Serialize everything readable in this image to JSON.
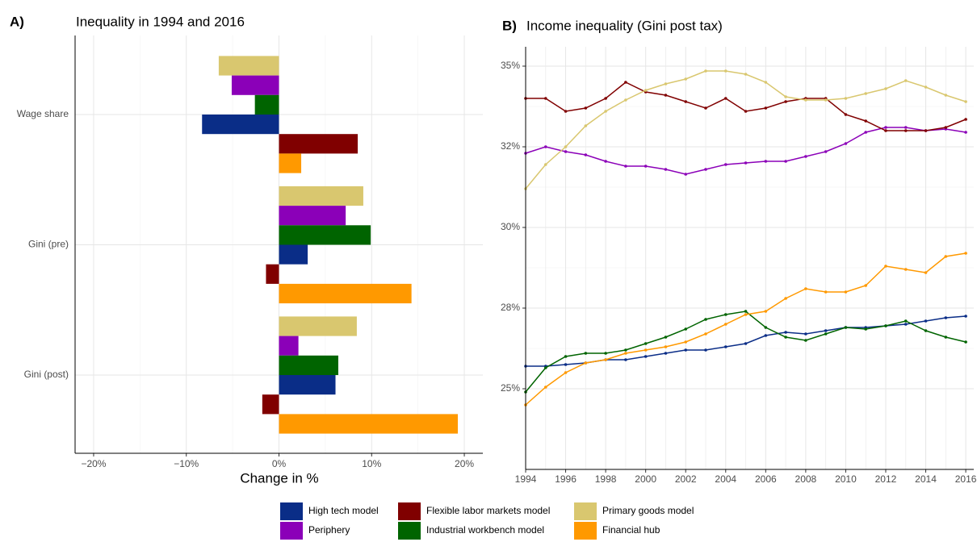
{
  "chart_data": [
    {
      "type": "hbar",
      "tag": "A)",
      "title": "Inequality in 1994 and 2016",
      "xlabel": "Change in %",
      "categories": [
        "Wage share",
        "Gini (pre)",
        "Gini (post)"
      ],
      "series": [
        {
          "name": "Primary goods model",
          "color": "#d9c76f",
          "values": [
            -6.5,
            9.1,
            8.4
          ]
        },
        {
          "name": "Periphery",
          "color": "#8b00b8",
          "values": [
            -5.1,
            7.2,
            2.1
          ]
        },
        {
          "name": "Industrial workbench model",
          "color": "#006400",
          "values": [
            -2.6,
            9.9,
            6.4
          ]
        },
        {
          "name": "High tech model",
          "color": "#0a2d87",
          "values": [
            -8.3,
            3.1,
            6.1
          ]
        },
        {
          "name": "Flexible labor markets model",
          "color": "#800000",
          "values": [
            8.5,
            -1.4,
            -1.8
          ]
        },
        {
          "name": "Financial hub",
          "color": "#ff9900",
          "values": [
            2.4,
            14.3,
            19.3
          ]
        }
      ],
      "xlim": [
        -22,
        22
      ],
      "xticks": [
        {
          "value": -20,
          "label": "−20%"
        },
        {
          "value": -10,
          "label": "−10%"
        },
        {
          "value": 0,
          "label": "0%"
        },
        {
          "value": 10,
          "label": "10%"
        },
        {
          "value": 20,
          "label": "20%"
        }
      ],
      "grid": true
    },
    {
      "type": "line",
      "tag": "B)",
      "title": "Income inequality (Gini post tax)",
      "x": [
        1994,
        1995,
        1996,
        1997,
        1998,
        1999,
        2000,
        2001,
        2002,
        2003,
        2004,
        2005,
        2006,
        2007,
        2008,
        2009,
        2010,
        2011,
        2012,
        2013,
        2014,
        2015,
        2016
      ],
      "series": [
        {
          "name": "High tech model",
          "color": "#0a2d87",
          "values": [
            25.7,
            25.7,
            25.75,
            25.8,
            25.9,
            25.9,
            26.0,
            26.1,
            26.2,
            26.2,
            26.3,
            26.4,
            26.65,
            26.75,
            26.7,
            26.8,
            26.9,
            26.9,
            26.95,
            27.0,
            27.1,
            27.2,
            27.25
          ]
        },
        {
          "name": "Periphery",
          "color": "#8b00b8",
          "values": [
            32.3,
            32.5,
            32.35,
            32.25,
            32.05,
            31.9,
            31.9,
            31.8,
            31.65,
            31.8,
            31.95,
            32.0,
            32.05,
            32.05,
            32.2,
            32.35,
            32.6,
            32.95,
            33.1,
            33.1,
            33.0,
            33.05,
            32.95
          ]
        },
        {
          "name": "Flexible labor markets model",
          "color": "#800000",
          "values": [
            34.0,
            34.0,
            33.6,
            33.7,
            34.0,
            34.5,
            34.2,
            34.1,
            33.9,
            33.7,
            34.0,
            33.6,
            33.7,
            33.9,
            34.0,
            34.0,
            33.5,
            33.3,
            33.0,
            33.0,
            33.0,
            33.1,
            33.35
          ]
        },
        {
          "name": "Industrial workbench model",
          "color": "#006400",
          "values": [
            24.9,
            25.65,
            26.0,
            26.1,
            26.1,
            26.2,
            26.4,
            26.6,
            26.85,
            27.15,
            27.3,
            27.4,
            26.9,
            26.6,
            26.5,
            26.7,
            26.9,
            26.85,
            26.95,
            27.1,
            26.8,
            26.6,
            26.45
          ]
        },
        {
          "name": "Primary goods model",
          "color": "#d9c76f",
          "values": [
            31.2,
            31.95,
            32.5,
            33.15,
            33.6,
            33.95,
            34.25,
            34.45,
            34.6,
            34.85,
            34.85,
            34.75,
            34.5,
            34.05,
            33.95,
            33.95,
            34.0,
            34.15,
            34.3,
            34.55,
            34.35,
            34.1,
            33.9
          ]
        },
        {
          "name": "Financial hub",
          "color": "#ff9900",
          "values": [
            24.5,
            25.05,
            25.5,
            25.8,
            25.9,
            26.1,
            26.2,
            26.3,
            26.45,
            26.7,
            27.0,
            27.3,
            27.4,
            27.8,
            28.1,
            28.0,
            28.0,
            28.2,
            28.8,
            28.7,
            28.6,
            29.1,
            29.2
          ]
        }
      ],
      "xlim": [
        1994,
        2016.4
      ],
      "xticks": [
        1994,
        1996,
        1998,
        2000,
        2002,
        2004,
        2006,
        2008,
        2010,
        2012,
        2014,
        2016
      ],
      "ylim": [
        22.5,
        35.6
      ],
      "yticks": [
        {
          "value": 25,
          "label": "25%"
        },
        {
          "value": 27.5,
          "label": "28%"
        },
        {
          "value": 30,
          "label": "30%"
        },
        {
          "value": 32.5,
          "label": "32%"
        },
        {
          "value": 35,
          "label": "35%"
        }
      ],
      "grid": true
    }
  ]
}
